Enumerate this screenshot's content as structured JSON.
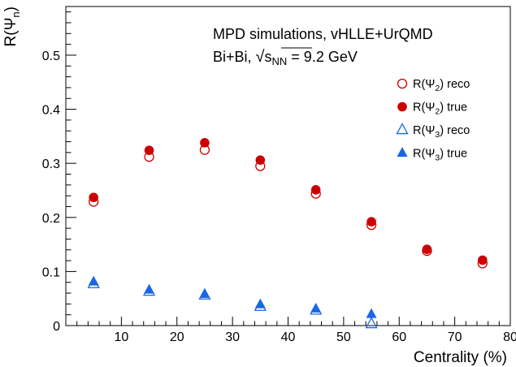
{
  "chart_data": {
    "type": "scatter",
    "title": "",
    "xlabel": "Centrality (%)",
    "ylabel": "R(Ψₙ)",
    "ylabel_main": "R(Ψ",
    "ylabel_sub": "n",
    "ylabel_close": ")",
    "xlim": [
      0,
      80
    ],
    "ylim": [
      0,
      0.59
    ],
    "x_ticks": [
      10,
      20,
      30,
      40,
      50,
      60,
      70,
      80
    ],
    "y_ticks": [
      0,
      0.1,
      0.2,
      0.3,
      0.4,
      0.5
    ],
    "y_tick_labels": [
      "0",
      "0.1",
      "0.2",
      "0.3",
      "0.4",
      "0.5"
    ],
    "grid": false,
    "legend_position": "top-right",
    "annotations": {
      "line1": "MPD simulations, vHLLE+UrQMD",
      "line2_prefix": "Bi+Bi, ",
      "line2_s": "s",
      "line2_sub": "NN",
      "line2_suffix": " = 9.2 GeV"
    },
    "series": [
      {
        "name": "R(Ψ2) reco",
        "label_main": "R(Ψ",
        "label_sub": "2",
        "label_tail": ") reco",
        "marker": "circle-open",
        "color": "#cc0000",
        "x": [
          5,
          15,
          25,
          35,
          45,
          55,
          65,
          75
        ],
        "y": [
          0.229,
          0.312,
          0.325,
          0.295,
          0.244,
          0.186,
          0.138,
          0.115
        ]
      },
      {
        "name": "R(Ψ2) true",
        "label_main": "R(Ψ",
        "label_sub": "2",
        "label_tail": ") true",
        "marker": "circle-filled",
        "color": "#cc0000",
        "x": [
          5,
          15,
          25,
          35,
          45,
          55,
          65,
          75
        ],
        "y": [
          0.237,
          0.324,
          0.338,
          0.306,
          0.251,
          0.192,
          0.141,
          0.121
        ]
      },
      {
        "name": "R(Ψ3) reco",
        "label_main": "R(Ψ",
        "label_sub": "3",
        "label_tail": ") reco",
        "marker": "triangle-open",
        "color": "#1a66e6",
        "x": [
          5,
          15,
          25,
          35,
          45,
          55
        ],
        "y": [
          0.077,
          0.063,
          0.056,
          0.035,
          0.028,
          0.003
        ]
      },
      {
        "name": "R(Ψ3) true",
        "label_main": "R(Ψ",
        "label_sub": "3",
        "label_tail": ") true",
        "marker": "triangle-filled",
        "color": "#1a66e6",
        "x": [
          5,
          15,
          25,
          35,
          45,
          55
        ],
        "y": [
          0.081,
          0.066,
          0.058,
          0.039,
          0.031,
          0.021
        ]
      }
    ]
  }
}
